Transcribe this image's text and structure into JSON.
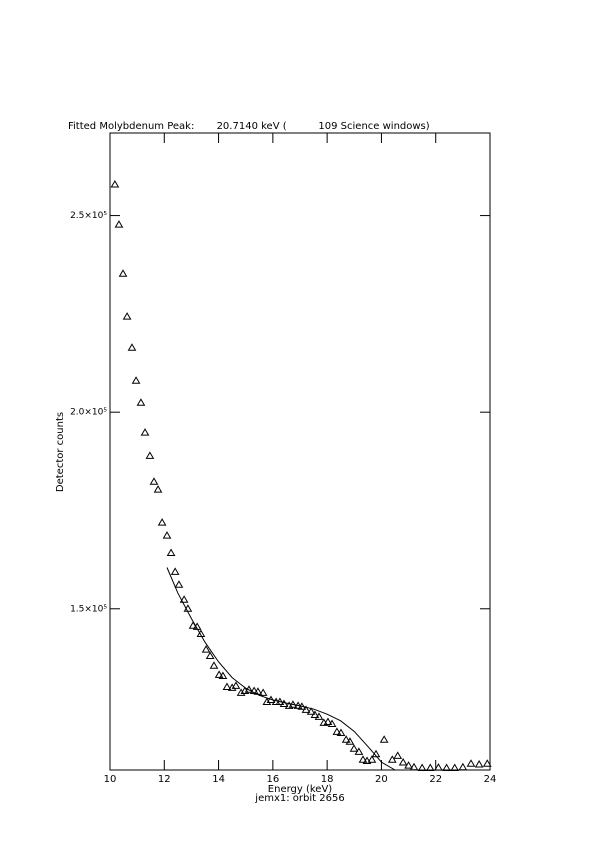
{
  "chart_data": {
    "type": "scatter",
    "title": "Fitted Molybdenum Peak:       20.7140 keV (          109 Science windows)",
    "x_label": "Energy (keV)",
    "subtitle": "jemx1: orbit 2656",
    "y_label": "Detector counts",
    "xlim": [
      10,
      24
    ],
    "xticks": [
      10,
      12,
      14,
      16,
      18,
      20,
      22,
      24
    ],
    "ylim": [
      109000,
      271000
    ],
    "yticks": [
      {
        "value": 150000,
        "label": "1.5×10⁵"
      },
      {
        "value": 200000,
        "label": "2.0×10⁵"
      },
      {
        "value": 250000,
        "label": "2.5×10⁵"
      }
    ],
    "series": [
      {
        "marker": "triangle",
        "color": "#000000",
        "x": [
          10.18,
          10.33,
          10.48,
          10.63,
          10.81,
          10.96,
          11.14,
          11.29,
          11.47,
          11.62,
          11.77,
          11.92,
          12.1,
          12.25,
          12.4,
          12.54,
          12.73,
          12.87,
          13.06,
          13.21,
          13.35,
          13.54,
          13.69,
          13.83,
          14.02,
          14.16,
          14.31,
          14.5,
          14.64,
          14.83,
          14.97,
          15.12,
          15.31,
          15.45,
          15.64,
          15.78,
          15.93,
          16.12,
          16.26,
          16.41,
          16.6,
          16.74,
          16.93,
          17.07,
          17.22,
          17.41,
          17.55,
          17.7,
          17.88,
          18.03,
          18.18,
          18.36,
          18.51,
          18.7,
          18.84,
          18.99,
          19.17,
          19.32,
          19.47,
          19.65,
          19.8,
          20.1,
          20.4,
          20.6,
          20.8,
          21.0,
          21.2,
          21.5,
          21.8,
          22.1,
          22.4,
          22.7,
          23.0,
          23.3,
          23.6,
          23.9
        ],
        "values": [
          257900,
          247700,
          235200,
          224300,
          216400,
          208000,
          202400,
          194800,
          188900,
          182300,
          180300,
          171900,
          168600,
          164200,
          159400,
          156100,
          152300,
          150000,
          145700,
          145400,
          143600,
          139600,
          138000,
          135500,
          133200,
          132900,
          130100,
          129900,
          130400,
          128600,
          129100,
          129400,
          129100,
          128900,
          128600,
          126300,
          126800,
          126300,
          126300,
          125800,
          125300,
          125600,
          125300,
          125100,
          124300,
          123800,
          123000,
          122500,
          121000,
          121200,
          120700,
          118700,
          118400,
          116700,
          116200,
          114400,
          113600,
          111600,
          111300,
          111600,
          113000,
          116700,
          111600,
          112600,
          110900,
          110100,
          109700,
          109500,
          109500,
          109600,
          109500,
          109500,
          109700,
          110600,
          110400,
          110600
        ]
      },
      {
        "marker": "line",
        "color": "#000000",
        "x": [
          12.1,
          12.5,
          13.0,
          13.5,
          14.0,
          14.5,
          15.0,
          15.5,
          16.0,
          16.5,
          17.0,
          17.5,
          18.0,
          18.5,
          19.0,
          19.5,
          20.0,
          20.5
        ],
        "values": [
          160500,
          154000,
          147500,
          141500,
          136500,
          132500,
          129800,
          128000,
          126800,
          126000,
          125300,
          124500,
          123200,
          121500,
          118800,
          115000,
          111000,
          109000
        ]
      }
    ]
  }
}
